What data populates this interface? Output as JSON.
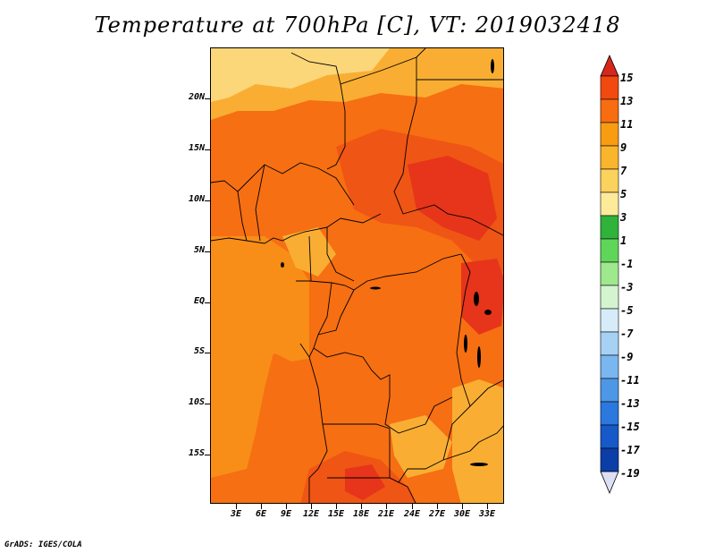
{
  "title": "Temperature at 700hPa [C], VT: 2019032418",
  "credit": "GrADS: IGES/COLA",
  "lat_labels": [
    "20N",
    "15N",
    "10N",
    "5N",
    "EQ",
    "5S",
    "10S",
    "15S"
  ],
  "lon_labels": [
    "3E",
    "6E",
    "9E",
    "12E",
    "15E",
    "18E",
    "21E",
    "24E",
    "27E",
    "30E",
    "33E"
  ],
  "colorbar": {
    "labels": [
      "15",
      "13",
      "11",
      "9",
      "7",
      "5",
      "3",
      "1",
      "-1",
      "-3",
      "-5",
      "-7",
      "-9",
      "-11",
      "-13",
      "-15",
      "-17",
      "-19"
    ],
    "colors": [
      "#e2211c",
      "#f2490f",
      "#f76d10",
      "#f89c11",
      "#f9b52b",
      "#fbd25e",
      "#fdeb9a",
      "#2fb33b",
      "#5fd65a",
      "#9ee88e",
      "#d4f4cf",
      "#d7ecf9",
      "#a6d1f4",
      "#7ab6ef",
      "#4d97e6",
      "#2b78de",
      "#1759c8",
      "#0b3ea7",
      "#08186f"
    ],
    "tip_top_color": "#d7261c",
    "tip_bottom_color": "#dde0f5"
  },
  "colors": {
    "warm_orange": "#f88e18",
    "mid_orange": "#f66f12",
    "dark_orange": "#ef5514",
    "red_orange": "#e6351a",
    "light_orange": "#f9ae33",
    "pale_yellow": "#fcd77a",
    "cream": "#fde69c"
  }
}
